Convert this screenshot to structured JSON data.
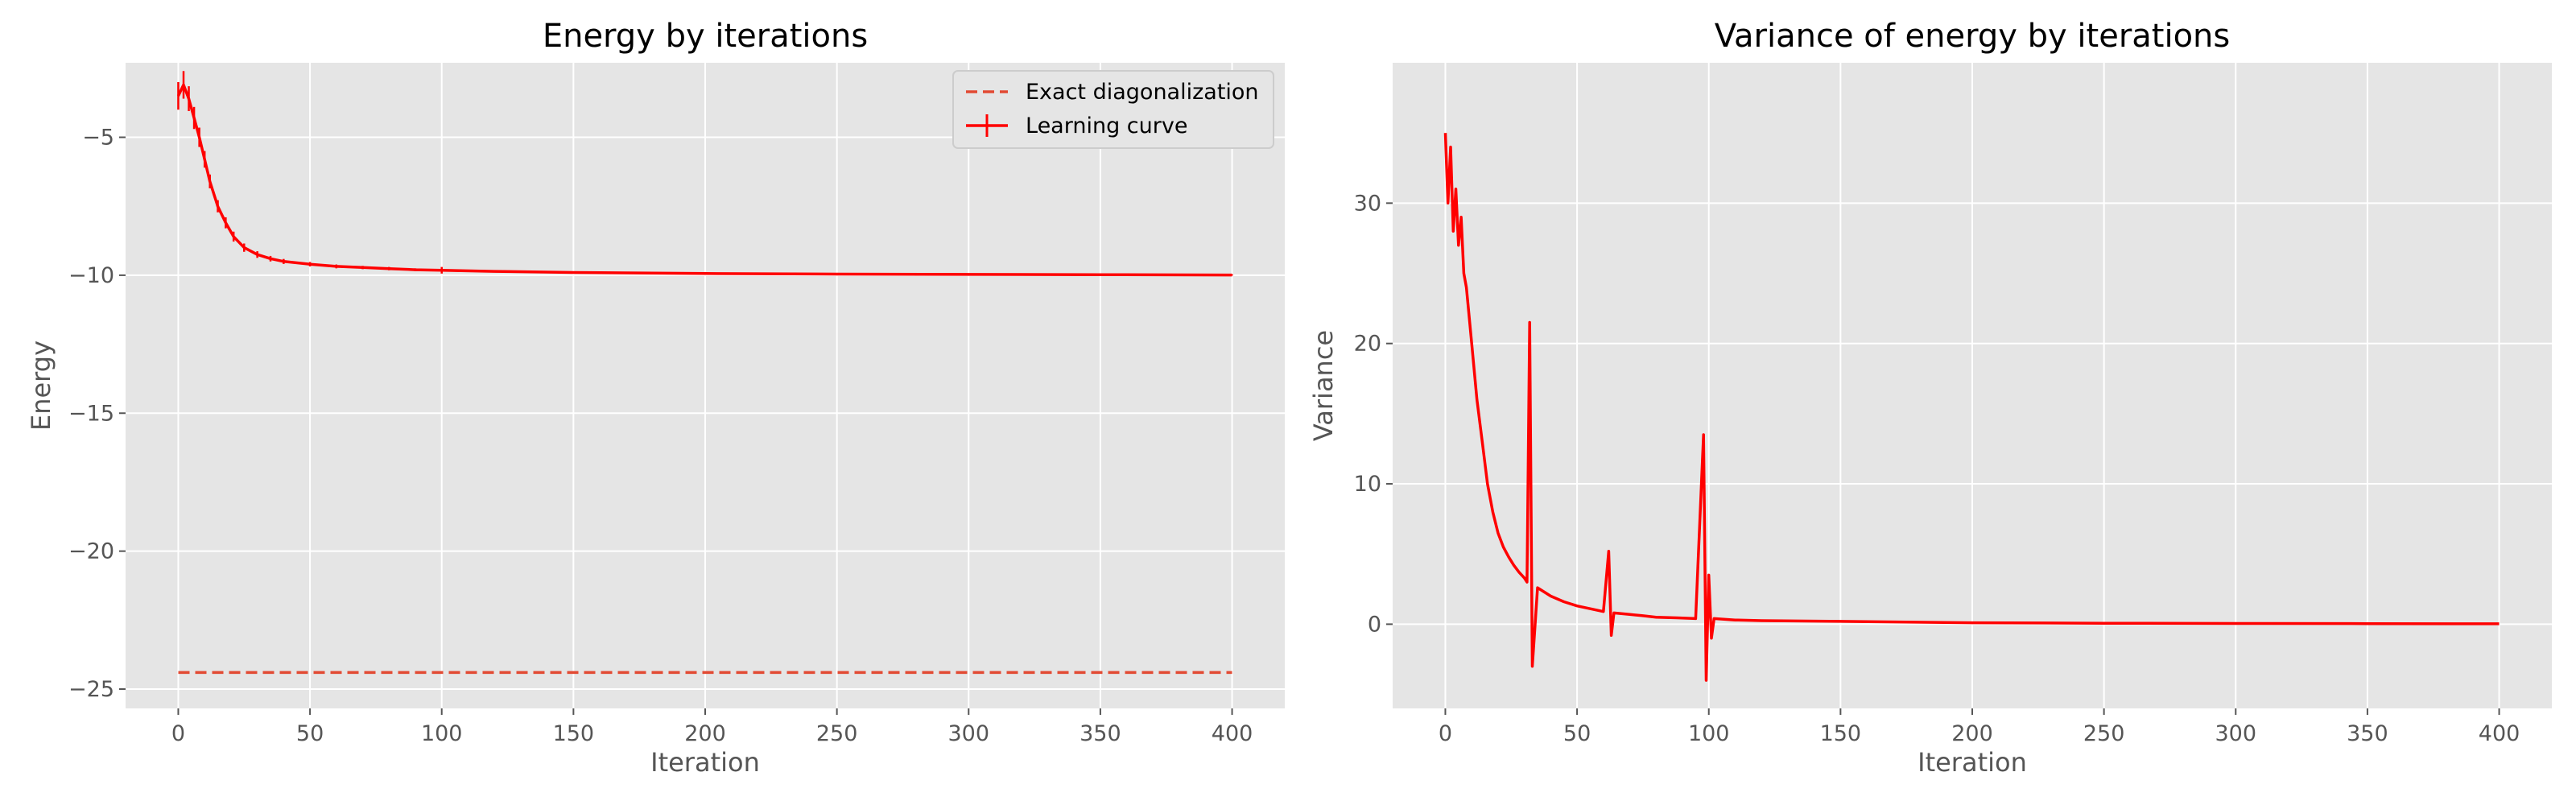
{
  "chart_data": [
    {
      "type": "line",
      "title": "Energy by iterations",
      "xlabel": "Iteration",
      "ylabel": "Energy",
      "xlim": [
        -20,
        420
      ],
      "ylim": [
        -25.7,
        -2.3
      ],
      "xticks": [
        0,
        50,
        100,
        150,
        200,
        250,
        300,
        350,
        400
      ],
      "yticks": [
        -25,
        -20,
        -15,
        -10,
        -5
      ],
      "grid": true,
      "legend_position": "top-right",
      "series": [
        {
          "name": "Exact diagonalization",
          "style": "dashed",
          "color": "#e24a33",
          "x": [
            0,
            400
          ],
          "y": [
            -24.4,
            -24.4
          ]
        },
        {
          "name": "Learning curve",
          "style": "solid-errorbar",
          "color": "#ff0000",
          "x": [
            0,
            2,
            4,
            6,
            8,
            10,
            12,
            15,
            18,
            21,
            25,
            30,
            35,
            40,
            50,
            60,
            70,
            80,
            90,
            100,
            120,
            150,
            200,
            250,
            300,
            350,
            400
          ],
          "y": [
            -3.5,
            -3.1,
            -3.6,
            -4.3,
            -5.0,
            -5.8,
            -6.6,
            -7.5,
            -8.1,
            -8.6,
            -9.0,
            -9.25,
            -9.4,
            -9.5,
            -9.6,
            -9.68,
            -9.72,
            -9.76,
            -9.8,
            -9.82,
            -9.86,
            -9.9,
            -9.94,
            -9.96,
            -9.97,
            -9.98,
            -9.99
          ],
          "err": [
            0.5,
            0.5,
            0.45,
            0.4,
            0.35,
            0.3,
            0.25,
            0.22,
            0.2,
            0.18,
            0.15,
            0.12,
            0.1,
            0.09,
            0.08,
            0.07,
            0.06,
            0.06,
            0.05,
            0.12,
            0.04,
            0.04,
            0.03,
            0.03,
            0.03,
            0.02,
            0.02
          ]
        }
      ]
    },
    {
      "type": "line",
      "title": "Variance of energy by iterations",
      "xlabel": "Iteration",
      "ylabel": "Variance",
      "xlim": [
        -20,
        420
      ],
      "ylim": [
        -6,
        40
      ],
      "xticks": [
        0,
        50,
        100,
        150,
        200,
        250,
        300,
        350,
        400
      ],
      "yticks": [
        0,
        10,
        20,
        30
      ],
      "grid": true,
      "series": [
        {
          "name": "",
          "color": "#ff0000",
          "x": [
            0,
            1,
            2,
            3,
            4,
            5,
            6,
            7,
            8,
            9,
            10,
            12,
            14,
            16,
            18,
            20,
            22,
            24,
            26,
            28,
            30,
            31,
            32,
            33,
            35,
            40,
            45,
            50,
            55,
            60,
            62,
            63,
            64,
            70,
            75,
            80,
            88,
            95,
            98,
            99,
            100,
            101,
            102,
            110,
            120,
            150,
            200,
            250,
            300,
            350,
            400
          ],
          "y": [
            35,
            30,
            34,
            28,
            31,
            27,
            29,
            25,
            24,
            22,
            20,
            16,
            13,
            10,
            8,
            6.5,
            5.5,
            4.8,
            4.2,
            3.7,
            3.3,
            3.0,
            21.5,
            -3.0,
            2.6,
            2.0,
            1.6,
            1.3,
            1.1,
            0.9,
            5.2,
            -0.8,
            0.8,
            0.7,
            0.6,
            0.5,
            0.45,
            0.4,
            13.5,
            -4.0,
            3.5,
            -1.0,
            0.4,
            0.3,
            0.25,
            0.2,
            0.1,
            0.07,
            0.05,
            0.04,
            0.03
          ]
        }
      ]
    }
  ]
}
